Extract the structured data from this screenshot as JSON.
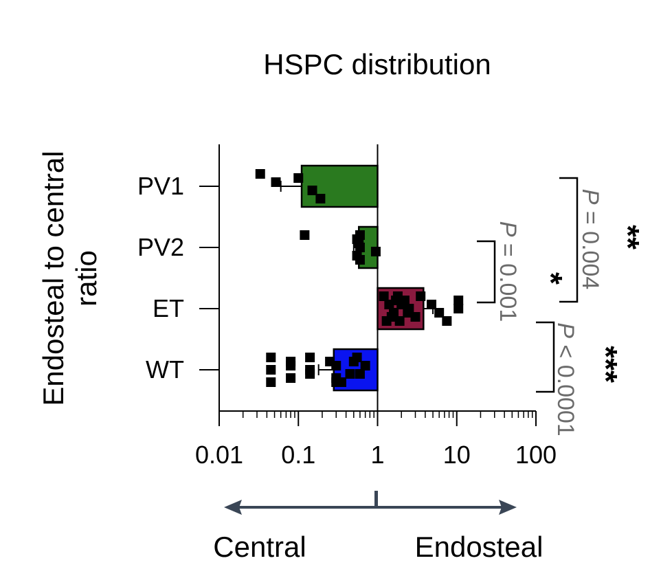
{
  "chart_data": {
    "type": "bar",
    "title": "HSPC distribution",
    "ylabel": "Endosteal to central ratio",
    "ylabel_lines": [
      "Endosteal to central",
      "ratio"
    ],
    "xscale": "log",
    "xlim": [
      0.01,
      100
    ],
    "xticks": [
      0.01,
      0.1,
      1,
      10,
      100
    ],
    "xtick_labels": [
      "0.01",
      "0.1",
      "1",
      "10",
      "100"
    ],
    "baseline": 1,
    "categories": [
      "PV1",
      "PV2",
      "ET",
      "WT"
    ],
    "values": [
      0.11,
      0.58,
      3.8,
      0.28
    ],
    "errors": [
      0.05,
      0.08,
      1.2,
      0.1
    ],
    "colors": [
      "#2a7a1f",
      "#2a7a1f",
      "#8b1a3f",
      "#0a14f0"
    ],
    "points": [
      [
        0.033,
        0.052,
        0.15,
        0.19,
        0.1
      ],
      [
        0.12,
        0.58,
        0.95,
        0.6,
        0.55,
        0.6,
        0.55,
        0.6
      ],
      [
        1.2,
        1.4,
        1.6,
        1.9,
        2.2,
        2.5,
        3.0,
        3.5,
        4.8,
        6.0,
        7.5,
        10.5,
        10.5,
        1.5,
        1.8,
        2.0,
        2.4,
        1.3,
        1.7
      ],
      [
        0.045,
        0.08,
        0.14,
        0.3,
        0.5,
        0.045,
        0.08,
        0.14,
        0.3,
        0.6,
        0.045,
        0.08,
        0.14,
        0.3,
        0.55,
        0.7,
        0.45,
        0.35,
        0.25
      ]
    ],
    "comparisons": [
      {
        "from": "PV2",
        "to": "ET",
        "p_prefix": "P",
        "p_text": " = 0.001",
        "stars": "*"
      },
      {
        "from": "PV1",
        "to": "ET",
        "p_prefix": "P",
        "p_text": " = 0.004",
        "stars": "**"
      },
      {
        "from": "ET",
        "to": "WT",
        "p_prefix": "P",
        "p_text": " < 0.0001",
        "stars": "***"
      }
    ],
    "direction": {
      "left": "Central",
      "right": "Endosteal"
    }
  },
  "colors": {
    "axis": "#000000",
    "arrow": "#3a4656",
    "pvalue": "#6b6b6b"
  }
}
